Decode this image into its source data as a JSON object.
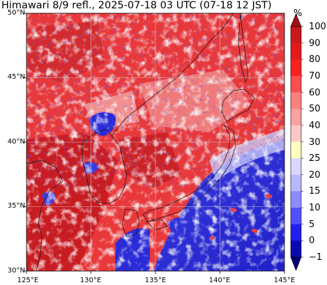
{
  "title": "Himawari 8/9 refl., 2025-07-18 03 UTC (07-18 12 JST)",
  "colorbar": {
    "unit": "%",
    "labels": [
      "100",
      "90",
      "80",
      "70",
      "60",
      "50",
      "40",
      "30",
      "25",
      "20",
      "15",
      "10",
      "5",
      "0",
      "−1"
    ],
    "colors": [
      "#a50f15",
      "#cb181d",
      "#e31a1c",
      "#fb2020",
      "#fc4e4e",
      "#fc8080",
      "#fca0a0",
      "#fcc8c8",
      "#ffffc0",
      "#d8d8ff",
      "#b8b8ff",
      "#8c8cff",
      "#5050ff",
      "#2020ee",
      "#0a0ab0",
      "#00007a"
    ]
  },
  "axes": {
    "lat_labels": [
      "50°N",
      "45°N",
      "40°N",
      "35°N",
      "30°N"
    ],
    "lon_labels": [
      "125°E",
      "130°E",
      "135°E",
      "140°E",
      "145°E"
    ],
    "lat_range": [
      30,
      50
    ],
    "lon_range": [
      125,
      145
    ]
  },
  "map": {
    "region": "Japan and East Asia",
    "gridlines": true
  }
}
